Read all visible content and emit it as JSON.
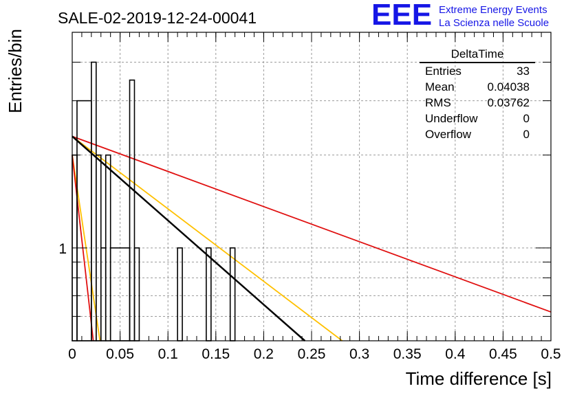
{
  "chart_data": {
    "type": "histogram",
    "title": "SALE-02-2019-12-24-00041",
    "xlabel": "Time difference [s]",
    "ylabel": "Entries/bin",
    "yscale": "log",
    "xlim": [
      0,
      0.5
    ],
    "ylim": [
      0.5,
      5
    ],
    "x_ticks": [
      "0",
      "0.05",
      "0.1",
      "0.15",
      "0.2",
      "0.25",
      "0.3",
      "0.35",
      "0.4",
      "0.45",
      "0.5"
    ],
    "y_ticks": [
      "1"
    ],
    "grid": true,
    "bin_width": 0.005,
    "bins": [
      {
        "x0": 0.0,
        "x1": 0.005,
        "y": 2
      },
      {
        "x0": 0.005,
        "x1": 0.02,
        "y": 3
      },
      {
        "x0": 0.02,
        "x1": 0.025,
        "y": 4
      },
      {
        "x0": 0.025,
        "x1": 0.03,
        "y": 2
      },
      {
        "x0": 0.03,
        "x1": 0.035,
        "y": 1
      },
      {
        "x0": 0.035,
        "x1": 0.04,
        "y": 2
      },
      {
        "x0": 0.04,
        "x1": 0.06,
        "y": 1
      },
      {
        "x0": 0.06,
        "x1": 0.065,
        "y": 3.5
      },
      {
        "x0": 0.065,
        "x1": 0.07,
        "y": 1
      },
      {
        "x0": 0.11,
        "x1": 0.115,
        "y": 1
      },
      {
        "x0": 0.14,
        "x1": 0.145,
        "y": 1
      },
      {
        "x0": 0.165,
        "x1": 0.17,
        "y": 1
      }
    ],
    "fit_lines": [
      {
        "color": "#e01010",
        "points": [
          [
            0,
            2.3
          ],
          [
            0.5,
            0.62
          ]
        ]
      },
      {
        "color": "#ffc000",
        "points": [
          [
            0,
            2.3
          ],
          [
            0.282,
            0.5
          ]
        ]
      },
      {
        "color": "#000000",
        "points": [
          [
            0,
            2.3
          ],
          [
            0.243,
            0.5
          ]
        ]
      },
      {
        "color": "#ffc000",
        "points": [
          [
            0,
            2.0
          ],
          [
            0.029,
            0.5
          ]
        ]
      },
      {
        "color": "#e01010",
        "points": [
          [
            0,
            2.0
          ],
          [
            0.022,
            0.5
          ]
        ]
      }
    ]
  },
  "stats_box": {
    "title": "DeltaTime",
    "rows": [
      {
        "key": "Entries",
        "value": "33"
      },
      {
        "key": "Mean",
        "value": "0.04038"
      },
      {
        "key": "RMS",
        "value": "0.03762"
      },
      {
        "key": "Underflow",
        "value": "0"
      },
      {
        "key": "Overflow",
        "value": "0"
      }
    ]
  },
  "logo": {
    "mark": "EEE",
    "line1": "Extreme Energy Events",
    "line2": "La Scienza nelle Scuole"
  },
  "colors": {
    "logo": "#1616e6",
    "grid": "#9a9a9a"
  }
}
